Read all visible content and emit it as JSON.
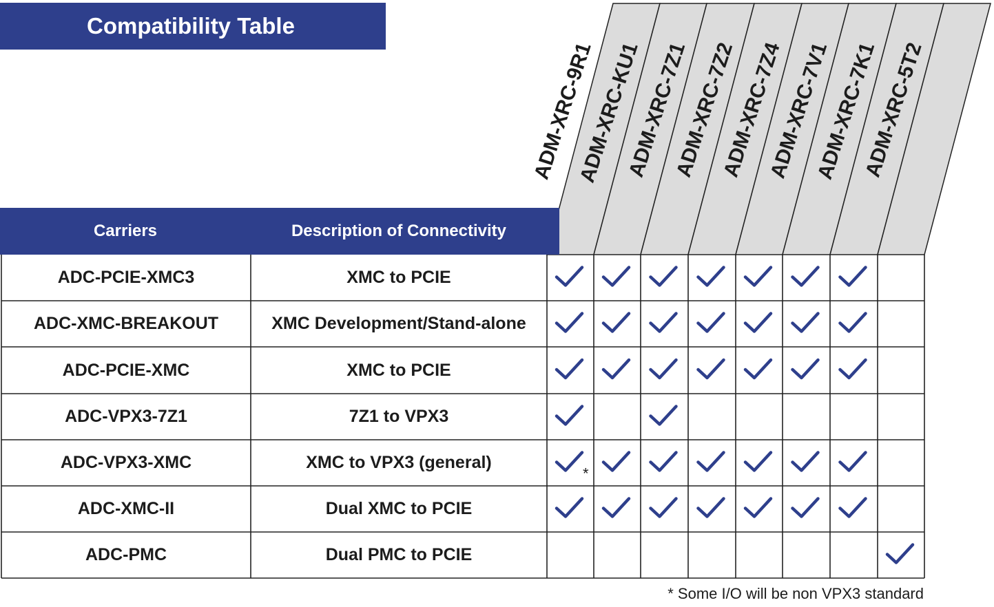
{
  "title": "Compatibility Table",
  "headers": {
    "carriers": "Carriers",
    "description": "Description of Connectivity"
  },
  "modules": [
    "ADM-XRC-9R1",
    "ADM-XRC-KU1",
    "ADM-XRC-7Z1",
    "ADM-XRC-7Z2",
    "ADM-XRC-7Z4",
    "ADM-XRC-7V1",
    "ADM-XRC-7K1",
    "ADM-XRC-5T2"
  ],
  "rows": [
    {
      "carrier": "ADC-PCIE-XMC3",
      "description": "XMC to PCIE",
      "compat": [
        true,
        true,
        true,
        true,
        true,
        true,
        true,
        false
      ]
    },
    {
      "carrier": "ADC-XMC-BREAKOUT",
      "description": "XMC Development/Stand-alone",
      "compat": [
        true,
        true,
        true,
        true,
        true,
        true,
        true,
        false
      ]
    },
    {
      "carrier": "ADC-PCIE-XMC",
      "description": "XMC to PCIE",
      "compat": [
        true,
        true,
        true,
        true,
        true,
        true,
        true,
        false
      ]
    },
    {
      "carrier": "ADC-VPX3-7Z1",
      "description": "7Z1 to VPX3",
      "compat": [
        true,
        false,
        true,
        false,
        false,
        false,
        false,
        false
      ]
    },
    {
      "carrier": "ADC-VPX3-XMC",
      "description": "XMC to VPX3 (general)",
      "compat": [
        true,
        true,
        true,
        true,
        true,
        true,
        true,
        false
      ],
      "note_mark_col": 0,
      "note_mark": "*"
    },
    {
      "carrier": "ADC-XMC-II",
      "description": "Dual XMC to PCIE",
      "compat": [
        true,
        true,
        true,
        true,
        true,
        true,
        true,
        false
      ]
    },
    {
      "carrier": "ADC-PMC",
      "description": "Dual PMC to PCIE",
      "compat": [
        false,
        false,
        false,
        false,
        false,
        false,
        false,
        true
      ]
    }
  ],
  "footnote": "* Some I/O will be non VPX3 standard",
  "colors": {
    "header_bg": "#2e3f8c",
    "column_header_bg": "#dcdcdc",
    "check": "#2e3f8c",
    "grid": "#222222"
  },
  "icons": {
    "compatible": "check-icon"
  }
}
